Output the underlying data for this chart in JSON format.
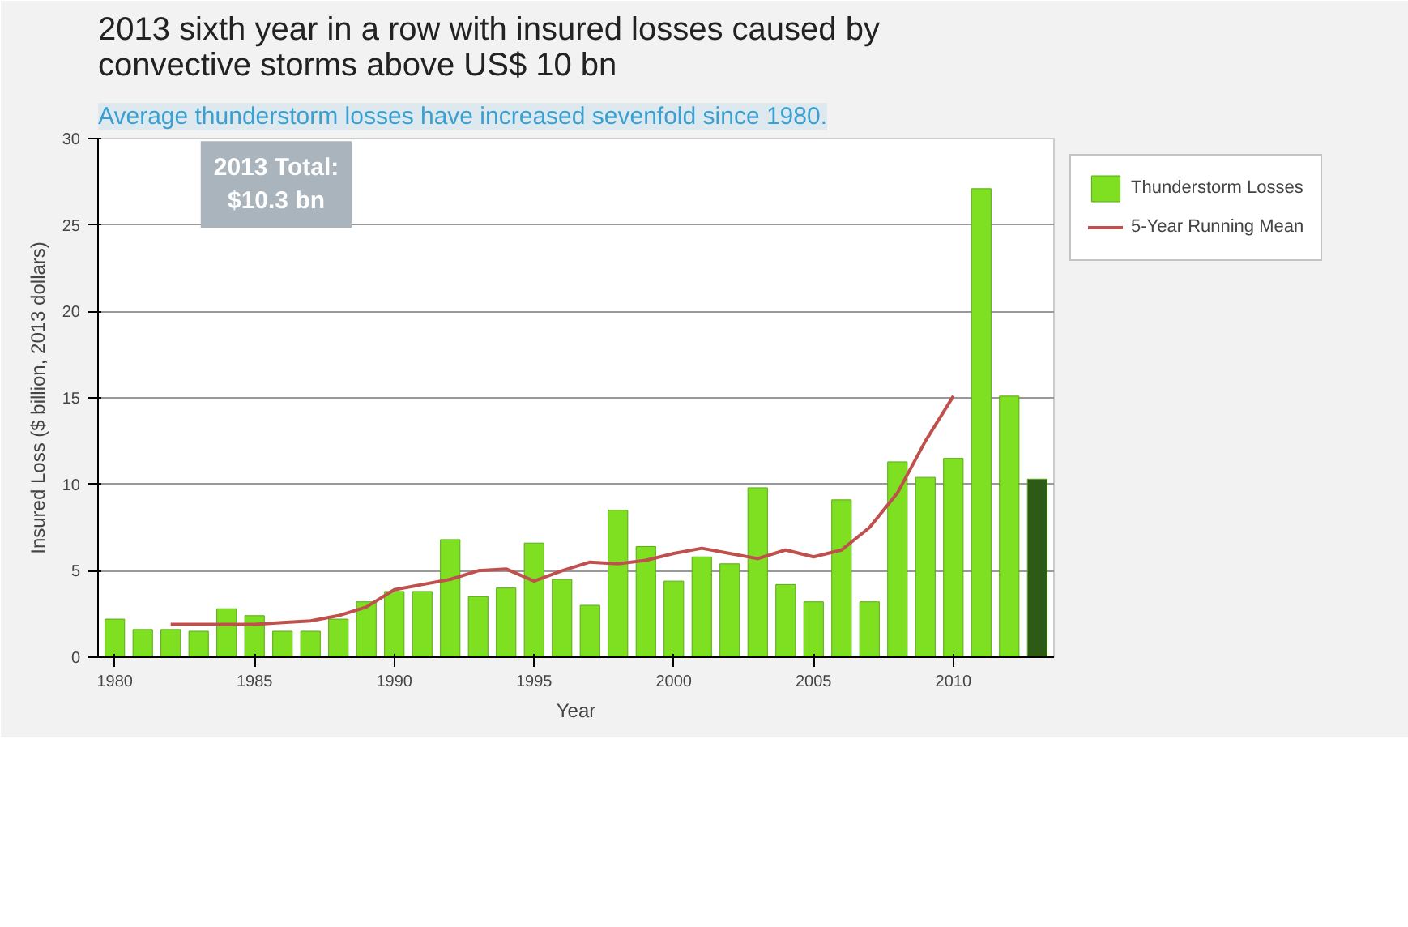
{
  "chart_data": {
    "type": "bar",
    "title": "2013 sixth year in a row with insured losses caused by convective storms above US$ 10 bn",
    "subtitle": "Average thunderstorm losses have increased sevenfold since 1980.",
    "xlabel": "Year",
    "ylabel": "Insured Loss ($ billion, 2013 dollars)",
    "annotations": [
      "2013 Total:\n$10.3 bn"
    ],
    "xlim": [
      1979.4,
      2013.6
    ],
    "xticks": [
      1980,
      1985,
      1990,
      1995,
      2000,
      2005,
      2010
    ],
    "ylim": [
      0,
      30
    ],
    "yticks": [
      0,
      5,
      10,
      15,
      20,
      25,
      30
    ],
    "grid": "y",
    "legend": "right",
    "series": [
      {
        "name": "Thunderstorm Losses",
        "x": [
          1980,
          1981,
          1982,
          1983,
          1984,
          1985,
          1986,
          1987,
          1988,
          1989,
          1990,
          1991,
          1992,
          1993,
          1994,
          1995,
          1996,
          1997,
          1998,
          1999,
          2000,
          2001,
          2002,
          2003,
          2004,
          2005,
          2006,
          2007,
          2008,
          2009,
          2010,
          2011,
          2012,
          2013
        ],
        "values": [
          2.2,
          1.6,
          1.6,
          1.5,
          2.8,
          2.4,
          1.5,
          1.5,
          2.2,
          3.2,
          3.8,
          3.8,
          6.8,
          3.5,
          4.0,
          6.6,
          4.5,
          3.0,
          8.5,
          6.4,
          4.4,
          5.8,
          5.4,
          9.8,
          4.2,
          3.2,
          9.1,
          3.2,
          11.3,
          10.4,
          11.5,
          27.1,
          15.1,
          10.3
        ],
        "colors": [
          "#7ee020",
          "#7ee020",
          "#7ee020",
          "#7ee020",
          "#7ee020",
          "#7ee020",
          "#7ee020",
          "#7ee020",
          "#7ee020",
          "#7ee020",
          "#7ee020",
          "#7ee020",
          "#7ee020",
          "#7ee020",
          "#7ee020",
          "#7ee020",
          "#7ee020",
          "#7ee020",
          "#7ee020",
          "#7ee020",
          "#7ee020",
          "#7ee020",
          "#7ee020",
          "#7ee020",
          "#7ee020",
          "#7ee020",
          "#7ee020",
          "#7ee020",
          "#7ee020",
          "#7ee020",
          "#7ee020",
          "#7ee020",
          "#7ee020",
          "#2d5a16"
        ]
      },
      {
        "name": "5-Year Running Mean",
        "type": "line",
        "color": "#c0504d",
        "x": [
          1982,
          1983,
          1984,
          1985,
          1986,
          1987,
          1988,
          1989,
          1990,
          1991,
          1992,
          1993,
          1994,
          1995,
          1996,
          1997,
          1998,
          1999,
          2000,
          2001,
          2002,
          2003,
          2004,
          2005,
          2006,
          2007,
          2008,
          2009,
          2010
        ],
        "values": [
          1.9,
          1.9,
          1.9,
          1.9,
          2.0,
          2.1,
          2.4,
          2.9,
          3.9,
          4.2,
          4.5,
          5.0,
          5.1,
          4.4,
          5.0,
          5.5,
          5.4,
          5.6,
          6.0,
          6.3,
          6.0,
          5.7,
          6.2,
          5.8,
          6.2,
          7.5,
          9.5,
          12.5,
          15.1
        ]
      }
    ]
  }
}
